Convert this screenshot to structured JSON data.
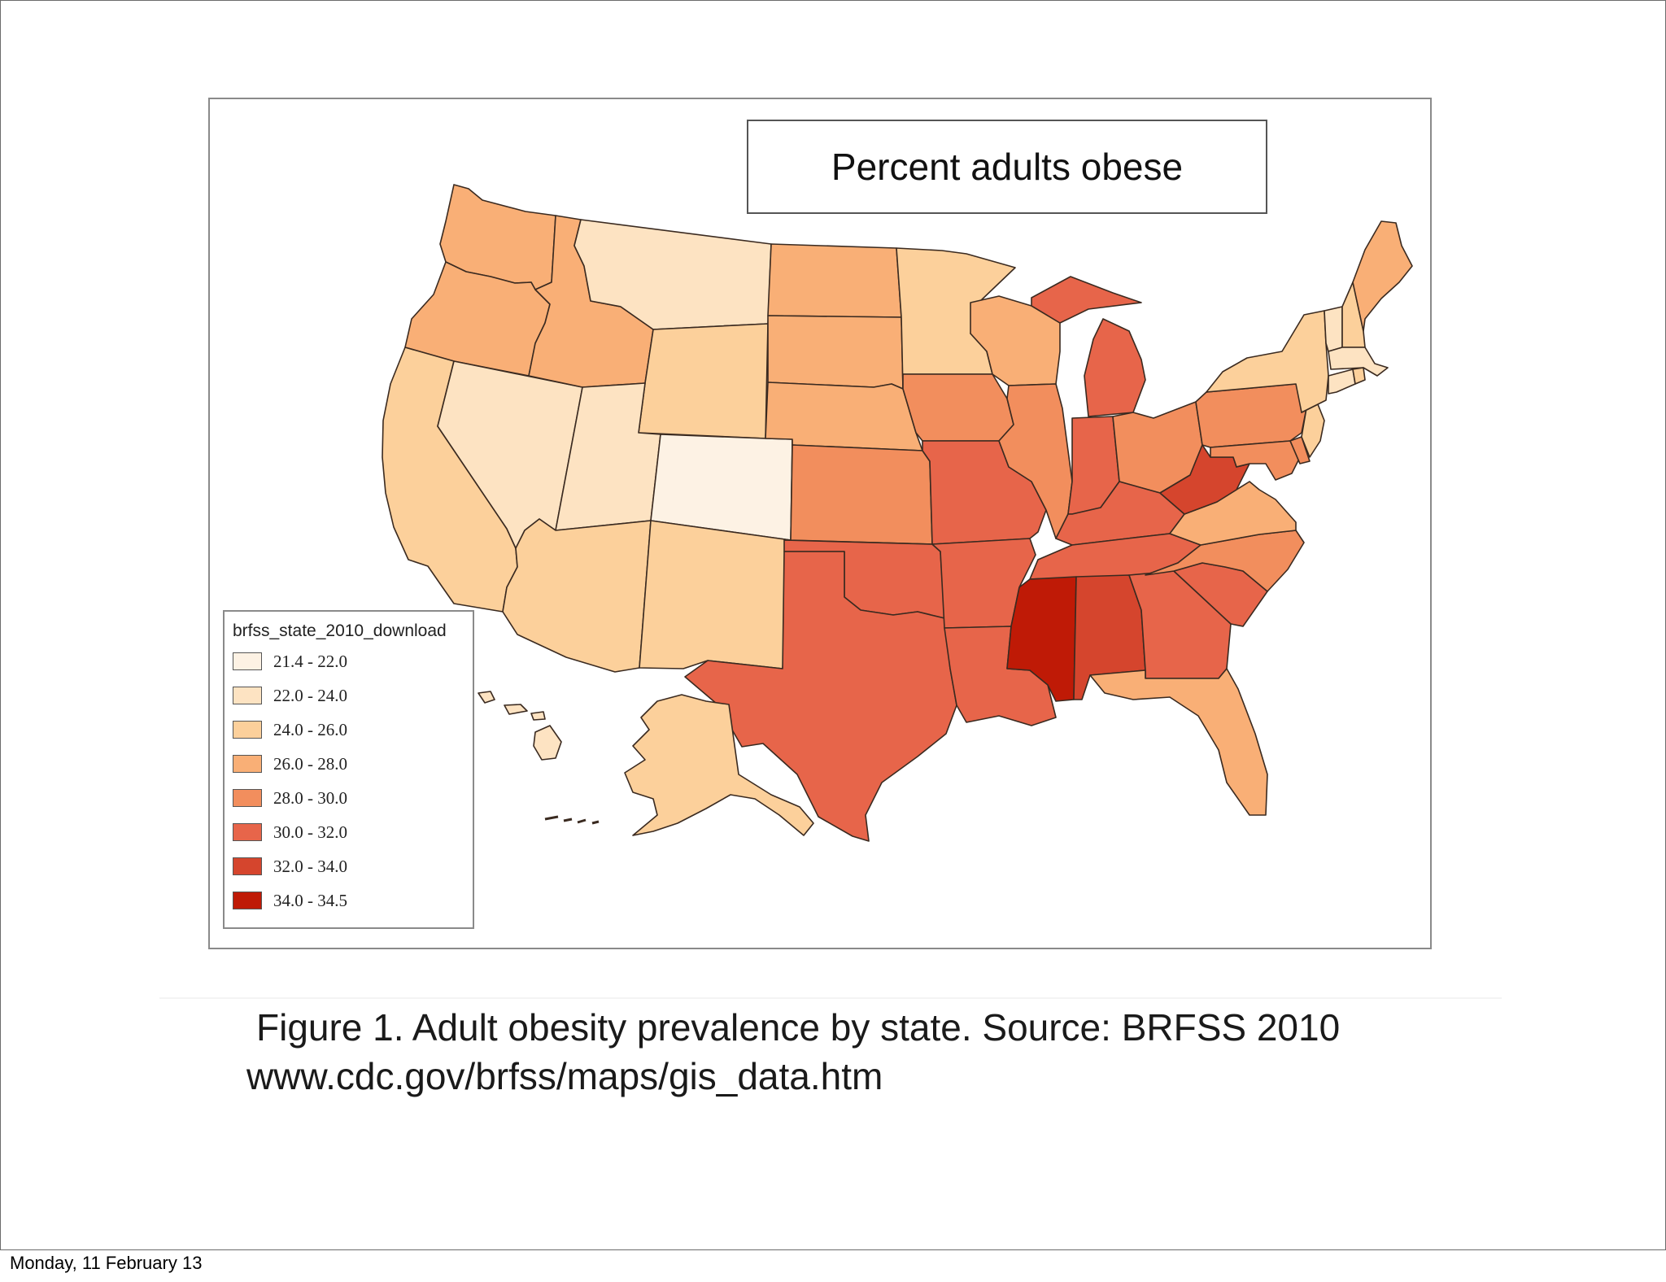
{
  "map": {
    "title": "Percent adults obese",
    "legend": {
      "title": "brfss_state_2010_download",
      "classes": [
        {
          "label": "21.4 - 22.0",
          "color": "#fdf2e4"
        },
        {
          "label": "22.0 - 24.0",
          "color": "#fde3c2"
        },
        {
          "label": "24.0 - 26.0",
          "color": "#fcd09b"
        },
        {
          "label": "26.0 - 28.0",
          "color": "#f9af76"
        },
        {
          "label": "28.0 - 30.0",
          "color": "#f28e5d"
        },
        {
          "label": "30.0 - 32.0",
          "color": "#e7654a"
        },
        {
          "label": "32.0 - 34.0",
          "color": "#d5452d"
        },
        {
          "label": "34.0 - 34.5",
          "color": "#bf1a06"
        }
      ]
    },
    "regions": [
      {
        "name": "Washington",
        "class": "26.0 - 28.0"
      },
      {
        "name": "Oregon",
        "class": "26.0 - 28.0"
      },
      {
        "name": "California",
        "class": "24.0 - 26.0"
      },
      {
        "name": "Nevada",
        "class": "22.0 - 24.0"
      },
      {
        "name": "Idaho",
        "class": "26.0 - 28.0"
      },
      {
        "name": "Montana",
        "class": "22.0 - 24.0"
      },
      {
        "name": "Wyoming",
        "class": "24.0 - 26.0"
      },
      {
        "name": "Utah",
        "class": "22.0 - 24.0"
      },
      {
        "name": "Colorado",
        "class": "21.4 - 22.0"
      },
      {
        "name": "Arizona",
        "class": "24.0 - 26.0"
      },
      {
        "name": "New Mexico",
        "class": "24.0 - 26.0"
      },
      {
        "name": "North Dakota",
        "class": "26.0 - 28.0"
      },
      {
        "name": "South Dakota",
        "class": "26.0 - 28.0"
      },
      {
        "name": "Nebraska",
        "class": "26.0 - 28.0"
      },
      {
        "name": "Kansas",
        "class": "28.0 - 30.0"
      },
      {
        "name": "Oklahoma",
        "class": "30.0 - 32.0"
      },
      {
        "name": "Texas",
        "class": "30.0 - 32.0"
      },
      {
        "name": "Minnesota",
        "class": "24.0 - 26.0"
      },
      {
        "name": "Iowa",
        "class": "28.0 - 30.0"
      },
      {
        "name": "Missouri",
        "class": "30.0 - 32.0"
      },
      {
        "name": "Arkansas",
        "class": "30.0 - 32.0"
      },
      {
        "name": "Louisiana",
        "class": "30.0 - 32.0"
      },
      {
        "name": "Wisconsin",
        "class": "26.0 - 28.0"
      },
      {
        "name": "Illinois",
        "class": "28.0 - 30.0"
      },
      {
        "name": "Michigan",
        "class": "30.0 - 32.0"
      },
      {
        "name": "Indiana",
        "class": "30.0 - 32.0"
      },
      {
        "name": "Ohio",
        "class": "28.0 - 30.0"
      },
      {
        "name": "Kentucky",
        "class": "30.0 - 32.0"
      },
      {
        "name": "Tennessee",
        "class": "30.0 - 32.0"
      },
      {
        "name": "Mississippi",
        "class": "34.0 - 34.5"
      },
      {
        "name": "Alabama",
        "class": "32.0 - 34.0"
      },
      {
        "name": "Georgia",
        "class": "30.0 - 32.0"
      },
      {
        "name": "Florida",
        "class": "26.0 - 28.0"
      },
      {
        "name": "South Carolina",
        "class": "30.0 - 32.0"
      },
      {
        "name": "North Carolina",
        "class": "28.0 - 30.0"
      },
      {
        "name": "Virginia",
        "class": "26.0 - 28.0"
      },
      {
        "name": "West Virginia",
        "class": "32.0 - 34.0"
      },
      {
        "name": "Pennsylvania",
        "class": "28.0 - 30.0"
      },
      {
        "name": "Maryland",
        "class": "28.0 - 30.0"
      },
      {
        "name": "Delaware",
        "class": "28.0 - 30.0"
      },
      {
        "name": "New Jersey",
        "class": "24.0 - 26.0"
      },
      {
        "name": "New York",
        "class": "24.0 - 26.0"
      },
      {
        "name": "Connecticut",
        "class": "22.0 - 24.0"
      },
      {
        "name": "Rhode Island",
        "class": "24.0 - 26.0"
      },
      {
        "name": "Massachusetts",
        "class": "22.0 - 24.0"
      },
      {
        "name": "Vermont",
        "class": "22.0 - 24.0"
      },
      {
        "name": "New Hampshire",
        "class": "24.0 - 26.0"
      },
      {
        "name": "Maine",
        "class": "26.0 - 28.0"
      },
      {
        "name": "Alaska",
        "class": "24.0 - 26.0"
      },
      {
        "name": "Hawaii",
        "class": "22.0 - 24.0"
      }
    ]
  },
  "caption": {
    "line1": "Figure 1. Adult obesity prevalence by state. Source: BRFSS 2010",
    "line2": "www.cdc.gov/brfss/maps/gis_data.htm"
  },
  "footer": {
    "date": "Monday, 11 February 13"
  }
}
